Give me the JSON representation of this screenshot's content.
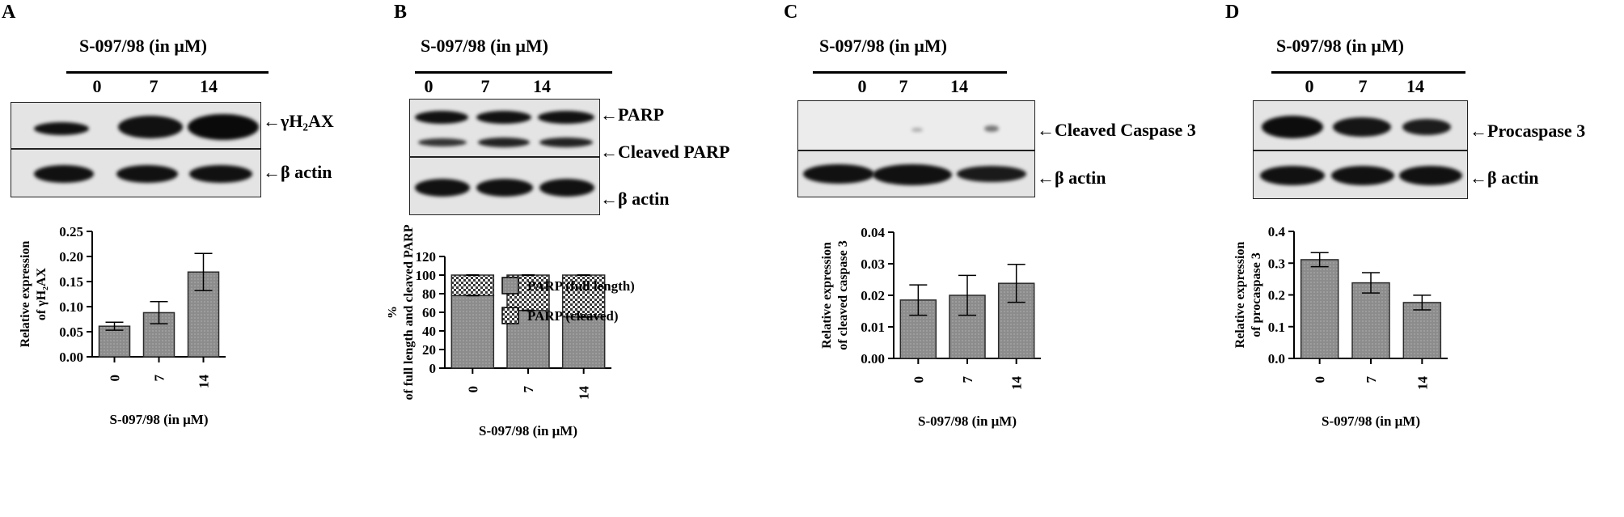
{
  "treatment_label": "S-097/98 (in μM)",
  "doses": [
    "0",
    "7",
    "14"
  ],
  "panels": {
    "A": {
      "letter": "A",
      "blot_labels": [
        "γH₂AX",
        "β actin"
      ]
    },
    "B": {
      "letter": "B",
      "blot_labels": [
        "PARP",
        "Cleaved PARP",
        "β actin"
      ]
    },
    "C": {
      "letter": "C",
      "blot_labels": [
        "Cleaved Caspase 3",
        "β actin"
      ]
    },
    "D": {
      "letter": "D",
      "blot_labels": [
        "Procaspase 3",
        "β actin"
      ]
    }
  },
  "colors": {
    "bar_fill": "#8c8c8c",
    "bar_stroke": "#2a2a2a",
    "band": "#111111",
    "blot_bg": "#e4e4e4"
  },
  "chart_data": [
    {
      "type": "bar",
      "panel": "A",
      "categories": [
        "0",
        "7",
        "14"
      ],
      "values": [
        0.061,
        0.088,
        0.169
      ],
      "errors": [
        0.008,
        0.022,
        0.037
      ],
      "xlabel": "S-097/98 (in μM)",
      "ylabel": "Relative expression of γH₂AX",
      "ylim": [
        0,
        0.25
      ],
      "yticks": [
        "0.00",
        "0.05",
        "0.10",
        "0.15",
        "0.20",
        "0.25"
      ]
    },
    {
      "type": "bar",
      "stacked": true,
      "panel": "B",
      "categories": [
        "0",
        "7",
        "14"
      ],
      "series": [
        {
          "name": "PARP (full length)",
          "values": [
            78,
            62,
            55
          ]
        },
        {
          "name": "PARP (cleaved)",
          "values": [
            22,
            38,
            45
          ]
        }
      ],
      "xlabel": "S-097/98 (in μM)",
      "ylabel": "% of full length and cleaved PARP",
      "ylim": [
        0,
        120
      ],
      "yticks": [
        "0",
        "20",
        "40",
        "60",
        "80",
        "100",
        "120"
      ],
      "legend": "top"
    },
    {
      "type": "bar",
      "panel": "C",
      "categories": [
        "0",
        "7",
        "14"
      ],
      "values": [
        0.0185,
        0.02,
        0.0238
      ],
      "errors": [
        0.0048,
        0.0063,
        0.006
      ],
      "xlabel": "S-097/98 (in μM)",
      "ylabel": "Relative expression of cleaved caspase 3",
      "ylim": [
        0,
        0.04
      ],
      "yticks": [
        "0.00",
        "0.01",
        "0.02",
        "0.03",
        "0.04"
      ]
    },
    {
      "type": "bar",
      "panel": "D",
      "categories": [
        "0",
        "7",
        "14"
      ],
      "values": [
        0.311,
        0.238,
        0.176
      ],
      "errors": [
        0.022,
        0.032,
        0.023
      ],
      "xlabel": "S-097/98 (in μM)",
      "ylabel": "Relative expression of procaspase 3",
      "ylim": [
        0,
        0.4
      ],
      "yticks": [
        "0.0",
        "0.1",
        "0.2",
        "0.3",
        "0.4"
      ]
    }
  ]
}
